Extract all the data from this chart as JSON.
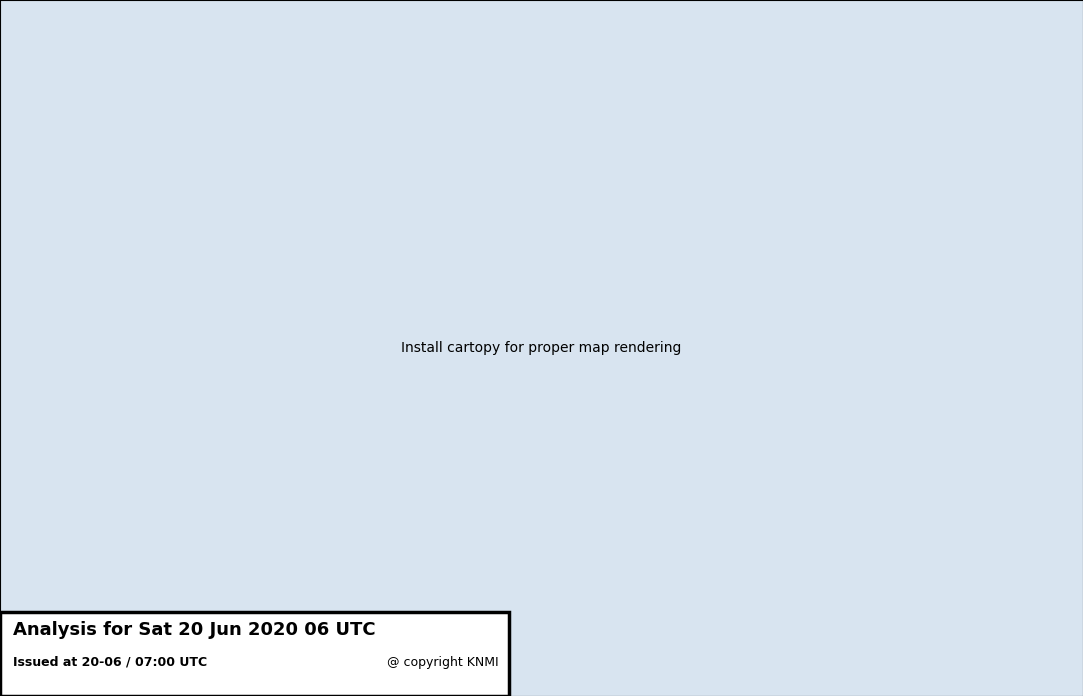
{
  "title": "Analysis for Sat 20 Jun 2020 06 UTC",
  "subtitle": "Issued at 20-06 / 07:00 UTC",
  "copyright": "@ copyright KNMI",
  "bg_ocean": "#d8e4f0",
  "bg_land": "#ede8d8",
  "isobar_color": "#3399dd",
  "cold_front_color": "#1111bb",
  "warm_front_color": "#cc2222",
  "occluded_front_color": "#883399",
  "H_color": "#1133bb",
  "L_color": "#cc1111",
  "extent": [
    -45,
    35,
    25,
    72
  ],
  "figsize": [
    10.83,
    6.96
  ],
  "dpi": 100
}
